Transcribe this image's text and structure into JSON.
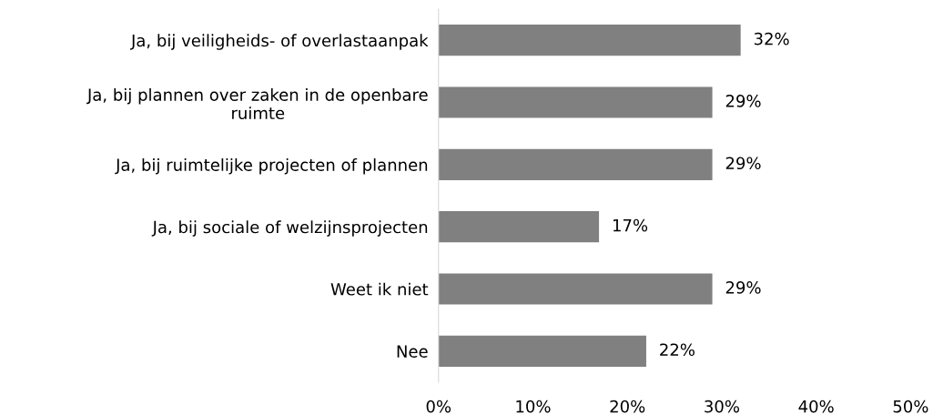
{
  "chart_data": {
    "type": "bar",
    "orientation": "horizontal",
    "categories": [
      "Ja, bij veiligheids- of overlastaanpak",
      "Ja, bij plannen over zaken in de openbare\nruimte",
      "Ja, bij ruimtelijke projecten of plannen",
      "Ja, bij sociale of welzijnsprojecten",
      "Weet ik niet",
      "Nee"
    ],
    "values": [
      32,
      29,
      29,
      17,
      29,
      22
    ],
    "value_labels": [
      "32%",
      "29%",
      "29%",
      "17%",
      "29%",
      "22%"
    ],
    "color": "#808080",
    "xlim": [
      0,
      50
    ],
    "xticks": [
      {
        "value": 0,
        "label": "0%"
      },
      {
        "value": 10,
        "label": "10%"
      },
      {
        "value": 20,
        "label": "20%"
      },
      {
        "value": 30,
        "label": "30%"
      },
      {
        "value": 40,
        "label": "40%"
      },
      {
        "value": 50,
        "label": "50%"
      }
    ],
    "grid": false,
    "legend": false
  }
}
